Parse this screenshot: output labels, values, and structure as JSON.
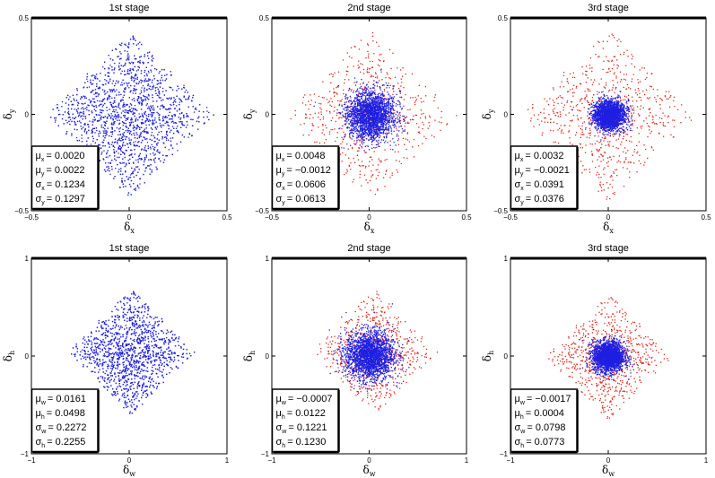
{
  "colors": {
    "stage1": "#1f1fe0",
    "refined": "#e0281f",
    "axis": "#000000"
  },
  "chart_data": [
    {
      "type": "scatter",
      "title": "1st stage",
      "xlabel": "δ",
      "xlabel_sub": "x",
      "ylabel": "δ",
      "ylabel_sub": "y",
      "xlim": [
        -0.5,
        0.5
      ],
      "ylim": [
        -0.5,
        0.5
      ],
      "xticks": [
        "−0.5",
        "0",
        "0.5"
      ],
      "yticks": [
        "−0.5",
        "0",
        "0.5"
      ],
      "series": [
        {
          "color": "#1f1fe0",
          "count": 2600,
          "sigma_x": 0.1234,
          "sigma_y": 0.1297,
          "mu_x": 0.002,
          "mu_y": 0.0022,
          "shape": "diamond",
          "extent": 0.43
        }
      ],
      "stats": [
        {
          "sym": "μ",
          "sub": "x",
          "value": "= 0.0020"
        },
        {
          "sym": "μ",
          "sub": "y",
          "value": "= 0.0022"
        },
        {
          "sym": "σ",
          "sub": "x",
          "value": "= 0.1234"
        },
        {
          "sym": "σ",
          "sub": "y",
          "value": "= 0.1297"
        }
      ],
      "grid": false,
      "legend_position": "bottom-left"
    },
    {
      "type": "scatter",
      "title": "2nd stage",
      "xlabel": "δ",
      "xlabel_sub": "x",
      "ylabel": "δ",
      "ylabel_sub": "y",
      "xlim": [
        -0.5,
        0.5
      ],
      "ylim": [
        -0.5,
        0.5
      ],
      "xticks": [
        "−0.5",
        "0",
        "0.5"
      ],
      "yticks": [
        "−0.5",
        "0",
        "0.5"
      ],
      "series": [
        {
          "color": "#e0281f",
          "count": 600,
          "sigma_x": 0.13,
          "sigma_y": 0.14,
          "mu_x": 0.0,
          "mu_y": 0.0,
          "shape": "diamond",
          "extent": 0.45
        },
        {
          "color": "#1f1fe0",
          "count": 2200,
          "sigma_x": 0.0606,
          "sigma_y": 0.0613,
          "mu_x": 0.0048,
          "mu_y": -0.0012,
          "shape": "gauss",
          "extent": 0.3
        }
      ],
      "stats": [
        {
          "sym": "μ",
          "sub": "x",
          "value": "= 0.0048"
        },
        {
          "sym": "μ",
          "sub": "y",
          "value": "= −0.0012"
        },
        {
          "sym": "σ",
          "sub": "x",
          "value": "= 0.0606"
        },
        {
          "sym": "σ",
          "sub": "y",
          "value": "= 0.0613"
        }
      ],
      "grid": false,
      "legend_position": "bottom-left"
    },
    {
      "type": "scatter",
      "title": "3rd stage",
      "xlabel": "δ",
      "xlabel_sub": "x",
      "ylabel": "δ",
      "ylabel_sub": "y",
      "xlim": [
        -0.5,
        0.5
      ],
      "ylim": [
        -0.5,
        0.5
      ],
      "xticks": [
        "−0.5",
        "0",
        "0.5"
      ],
      "yticks": [
        "−0.5",
        "0",
        "0.5"
      ],
      "series": [
        {
          "color": "#e0281f",
          "count": 700,
          "sigma_x": 0.12,
          "sigma_y": 0.14,
          "mu_x": 0.0,
          "mu_y": 0.0,
          "shape": "diamond",
          "extent": 0.45
        },
        {
          "color": "#1f1fe0",
          "count": 2200,
          "sigma_x": 0.0391,
          "sigma_y": 0.0376,
          "mu_x": 0.0032,
          "mu_y": -0.0021,
          "shape": "gauss",
          "extent": 0.2
        }
      ],
      "stats": [
        {
          "sym": "μ",
          "sub": "x",
          "value": "= 0.0032"
        },
        {
          "sym": "μ",
          "sub": "y",
          "value": "= −0.0021"
        },
        {
          "sym": "σ",
          "sub": "x",
          "value": "= 0.0391"
        },
        {
          "sym": "σ",
          "sub": "y",
          "value": "= 0.0376"
        }
      ],
      "grid": false,
      "legend_position": "bottom-left"
    },
    {
      "type": "scatter",
      "title": "1st stage",
      "xlabel": "δ",
      "xlabel_sub": "w",
      "ylabel": "δ",
      "ylabel_sub": "h",
      "xlim": [
        -1,
        1
      ],
      "ylim": [
        -1,
        1
      ],
      "xticks": [
        "−1",
        "0",
        "1"
      ],
      "yticks": [
        "−1",
        "0",
        "1"
      ],
      "series": [
        {
          "color": "#1f1fe0",
          "count": 2600,
          "sigma_x": 0.2272,
          "sigma_y": 0.2255,
          "mu_x": 0.0161,
          "mu_y": 0.0498,
          "shape": "diamond",
          "extent": 0.65
        }
      ],
      "stats": [
        {
          "sym": "μ",
          "sub": "w",
          "value": "= 0.0161"
        },
        {
          "sym": "μ",
          "sub": "h",
          "value": "= 0.0498"
        },
        {
          "sym": "σ",
          "sub": "w",
          "value": "= 0.2272"
        },
        {
          "sym": "σ",
          "sub": "h",
          "value": "= 0.2255"
        }
      ],
      "grid": false,
      "legend_position": "bottom-left"
    },
    {
      "type": "scatter",
      "title": "2nd stage",
      "xlabel": "δ",
      "xlabel_sub": "w",
      "ylabel": "δ",
      "ylabel_sub": "h",
      "xlim": [
        -1,
        1
      ],
      "ylim": [
        -1,
        1
      ],
      "xticks": [
        "−1",
        "0",
        "1"
      ],
      "yticks": [
        "−1",
        "0",
        "1"
      ],
      "series": [
        {
          "color": "#e0281f",
          "count": 650,
          "sigma_x": 0.24,
          "sigma_y": 0.24,
          "mu_x": 0.05,
          "mu_y": 0.05,
          "shape": "diamond",
          "extent": 0.65
        },
        {
          "color": "#1f1fe0",
          "count": 2200,
          "sigma_x": 0.1221,
          "sigma_y": 0.123,
          "mu_x": -0.0007,
          "mu_y": 0.0122,
          "shape": "gauss",
          "extent": 0.55
        }
      ],
      "stats": [
        {
          "sym": "μ",
          "sub": "w",
          "value": "= −0.0007"
        },
        {
          "sym": "μ",
          "sub": "h",
          "value": "= 0.0122"
        },
        {
          "sym": "σ",
          "sub": "w",
          "value": "= 0.1221"
        },
        {
          "sym": "σ",
          "sub": "h",
          "value": "= 0.1230"
        }
      ],
      "grid": false,
      "legend_position": "bottom-left"
    },
    {
      "type": "scatter",
      "title": "3rd stage",
      "xlabel": "δ",
      "xlabel_sub": "w",
      "ylabel": "δ",
      "ylabel_sub": "h",
      "xlim": [
        -1,
        1
      ],
      "ylim": [
        -1,
        1
      ],
      "xticks": [
        "−1",
        "0",
        "1"
      ],
      "yticks": [
        "−1",
        "0",
        "1"
      ],
      "series": [
        {
          "color": "#e0281f",
          "count": 750,
          "sigma_x": 0.24,
          "sigma_y": 0.24,
          "mu_x": 0.0,
          "mu_y": 0.0,
          "shape": "diamond",
          "extent": 0.65
        },
        {
          "color": "#1f1fe0",
          "count": 2200,
          "sigma_x": 0.0798,
          "sigma_y": 0.0773,
          "mu_x": -0.0017,
          "mu_y": 0.0004,
          "shape": "gauss",
          "extent": 0.4
        }
      ],
      "stats": [
        {
          "sym": "μ",
          "sub": "w",
          "value": "= −0.0017"
        },
        {
          "sym": "μ",
          "sub": "h",
          "value": "= 0.0004"
        },
        {
          "sym": "σ",
          "sub": "w",
          "value": "= 0.0798"
        },
        {
          "sym": "σ",
          "sub": "h",
          "value": "= 0.0773"
        }
      ],
      "grid": false,
      "legend_position": "bottom-left"
    }
  ]
}
